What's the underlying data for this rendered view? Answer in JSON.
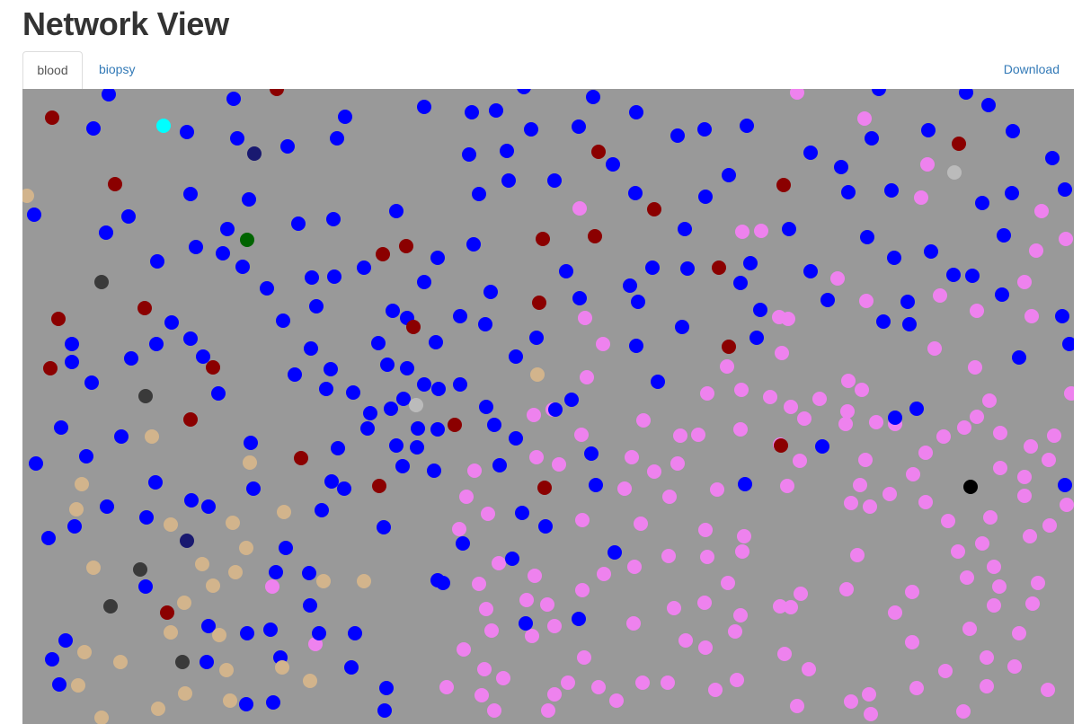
{
  "page": {
    "title": "Network View"
  },
  "tabs": [
    {
      "label": "blood",
      "active": true
    },
    {
      "label": "biopsy",
      "active": false
    }
  ],
  "actions": {
    "download_label": "Download"
  },
  "network": {
    "background": "#999999",
    "palette": {
      "blue": "#0000ff",
      "pink": "#ee82ee",
      "darkred": "#8b0000",
      "tan": "#d2b48c",
      "darkgray": "#3a3a3a",
      "navy": "#191970",
      "green": "#006400",
      "cyan": "#00ffff",
      "gray": "#bbbbbb",
      "black": "#000000"
    }
  }
}
